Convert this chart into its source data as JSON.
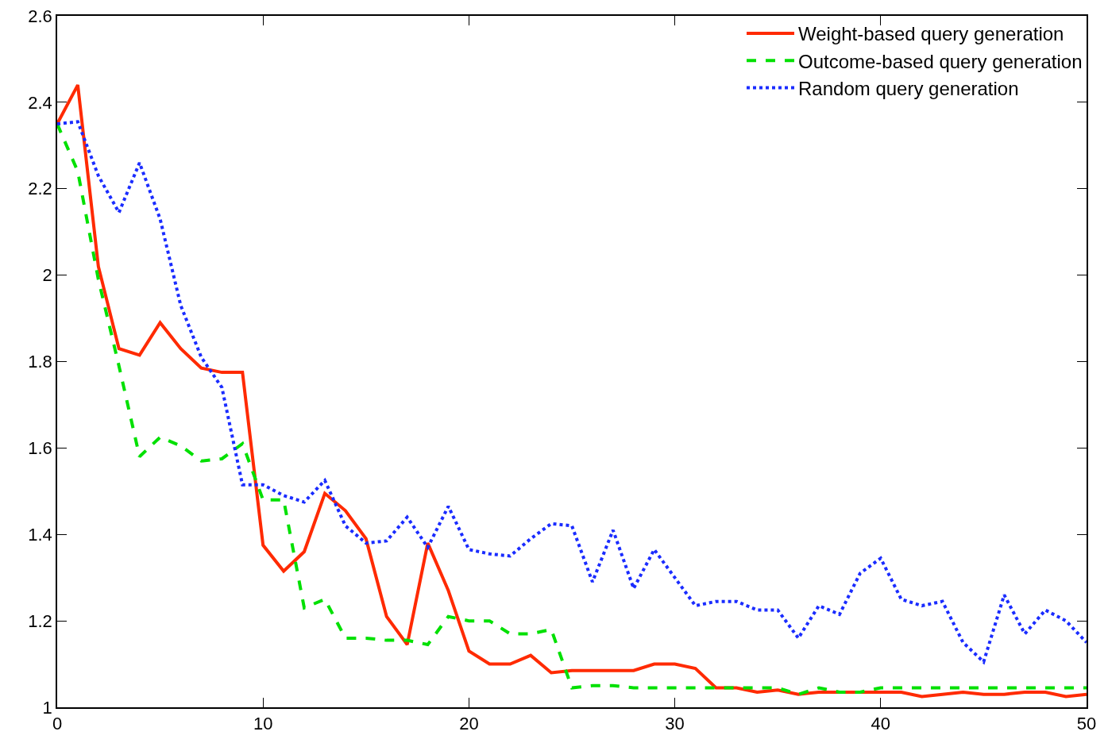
{
  "chart_data": {
    "type": "line",
    "x": [
      0,
      1,
      2,
      3,
      4,
      5,
      6,
      7,
      8,
      9,
      10,
      11,
      12,
      13,
      14,
      15,
      16,
      17,
      18,
      19,
      20,
      21,
      22,
      23,
      24,
      25,
      26,
      27,
      28,
      29,
      30,
      31,
      32,
      33,
      34,
      35,
      36,
      37,
      38,
      39,
      40,
      41,
      42,
      43,
      44,
      45,
      46,
      47,
      48,
      49,
      50
    ],
    "series": [
      {
        "name": "Weight-based query generation",
        "color": "#ff2a00",
        "line_style": "solid",
        "values": [
          2.35,
          2.44,
          2.02,
          1.83,
          1.815,
          1.89,
          1.83,
          1.785,
          1.775,
          1.775,
          1.375,
          1.315,
          1.36,
          1.495,
          1.455,
          1.39,
          1.21,
          1.145,
          1.38,
          1.27,
          1.13,
          1.1,
          1.1,
          1.12,
          1.08,
          1.085,
          1.085,
          1.085,
          1.085,
          1.1,
          1.1,
          1.09,
          1.045,
          1.045,
          1.035,
          1.04,
          1.03,
          1.035,
          1.035,
          1.035,
          1.035,
          1.035,
          1.025,
          1.03,
          1.035,
          1.03,
          1.03,
          1.035,
          1.035,
          1.025,
          1.03
        ]
      },
      {
        "name": "Outcome-based query generation",
        "color": "#00e000",
        "line_style": "dashed",
        "values": [
          2.35,
          2.24,
          1.99,
          1.79,
          1.58,
          1.625,
          1.605,
          1.57,
          1.575,
          1.61,
          1.48,
          1.48,
          1.23,
          1.25,
          1.16,
          1.16,
          1.155,
          1.155,
          1.145,
          1.21,
          1.2,
          1.2,
          1.17,
          1.17,
          1.18,
          1.045,
          1.05,
          1.05,
          1.045,
          1.045,
          1.045,
          1.045,
          1.045,
          1.045,
          1.045,
          1.045,
          1.03,
          1.045,
          1.035,
          1.035,
          1.045,
          1.045,
          1.045,
          1.045,
          1.045,
          1.045,
          1.045,
          1.045,
          1.045,
          1.045,
          1.045
        ]
      },
      {
        "name": "Random query generation",
        "color": "#1a2cff",
        "line_style": "dotted",
        "values": [
          2.35,
          2.355,
          2.23,
          2.145,
          2.26,
          2.13,
          1.93,
          1.81,
          1.74,
          1.515,
          1.515,
          1.49,
          1.475,
          1.525,
          1.42,
          1.38,
          1.385,
          1.44,
          1.37,
          1.465,
          1.365,
          1.355,
          1.35,
          1.39,
          1.425,
          1.42,
          1.29,
          1.41,
          1.275,
          1.365,
          1.3,
          1.235,
          1.245,
          1.245,
          1.225,
          1.225,
          1.16,
          1.235,
          1.215,
          1.31,
          1.345,
          1.25,
          1.235,
          1.245,
          1.15,
          1.105,
          1.26,
          1.17,
          1.225,
          1.2,
          1.15
        ]
      }
    ],
    "xlim": [
      0,
      50
    ],
    "xticks": [
      0,
      10,
      20,
      30,
      40,
      50
    ],
    "ylim": [
      1,
      2.6
    ],
    "yticks": [
      1,
      1.2,
      1.4,
      1.6,
      1.8,
      2,
      2.2,
      2.4,
      2.6
    ],
    "grid": false,
    "legend": "top right",
    "marker": "none"
  }
}
